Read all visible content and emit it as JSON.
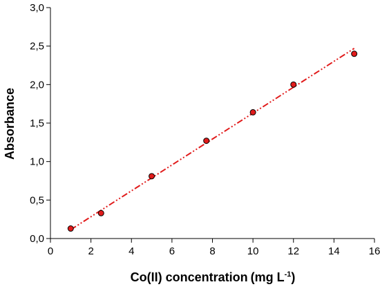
{
  "chart_data": {
    "type": "scatter",
    "xlabel": "Co(II) concentration",
    "xlabel_unit": "(mg L",
    "xlabel_unit_sup": "-1",
    "xlabel_unit_close": ")",
    "ylabel": "Absorbance",
    "xlim": [
      0,
      16
    ],
    "ylim": [
      0,
      3
    ],
    "grid": false,
    "x_ticks": [
      0,
      2,
      4,
      6,
      8,
      10,
      12,
      14,
      16
    ],
    "x_tick_labels": [
      "0",
      "2",
      "4",
      "6",
      "8",
      "10",
      "12",
      "14",
      "16"
    ],
    "y_ticks": [
      0,
      0.5,
      1,
      1.5,
      2,
      2.5,
      3
    ],
    "y_tick_labels": [
      "0,0",
      "0,5",
      "1,0",
      "1,5",
      "2,0",
      "2,5",
      "3,0"
    ],
    "series": [
      {
        "x": [
          1,
          2.5,
          5,
          7.7,
          10,
          12,
          15
        ],
        "values": [
          0.13,
          0.33,
          0.81,
          1.27,
          1.64,
          2.0,
          2.4
        ],
        "marker": "circle",
        "marker_color": "#e11b1b"
      }
    ],
    "fit_line": {
      "x": [
        1,
        15
      ],
      "y": [
        0.115,
        2.47
      ],
      "style": "dash-dot-dot",
      "color": "#e11b1b"
    }
  }
}
